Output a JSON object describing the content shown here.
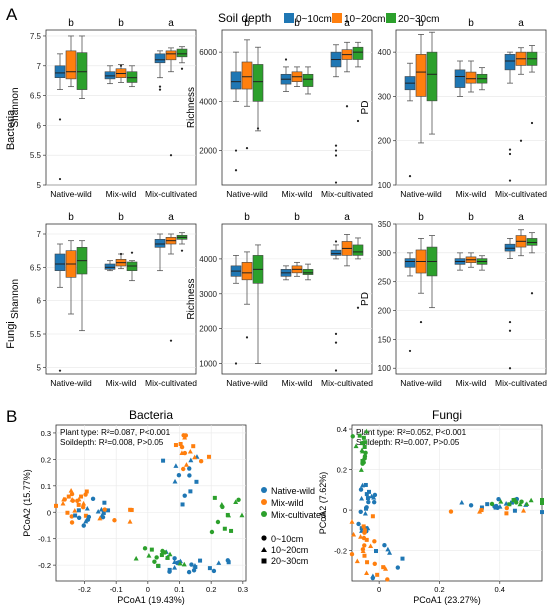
{
  "panel_labels": {
    "a": "A",
    "b": "B"
  },
  "legend": {
    "title": "Soil depth",
    "items": [
      {
        "label": "0~10cm",
        "color": "#1f77b4"
      },
      {
        "label": "10~20cm",
        "color": "#ff7f0e"
      },
      {
        "label": "20~30cm",
        "color": "#2ca02c"
      }
    ]
  },
  "row_labels": {
    "bacteria": "Bacteria",
    "fungi": "Fungi"
  },
  "groups": [
    "Native-wild",
    "Mix-wild",
    "Mix-cultivated"
  ],
  "colors": {
    "d1": "#1f77b4",
    "d2": "#ff7f0e",
    "d3": "#2ca02c",
    "native": "#1f77b4",
    "mixwild": "#ff7f0e",
    "mixcult": "#2ca02c"
  },
  "pcoa_titles": {
    "bacteria": "Bacteria",
    "fungi": "Fungi"
  },
  "pcoa_legend": {
    "groups": [
      "Native-wild",
      "Mix-wild",
      "Mix-cultivated"
    ],
    "depths": [
      "0~10cm",
      "10~20cm",
      "20~30cm"
    ]
  },
  "chart_data": [
    {
      "type": "box",
      "id": "bac_shannon",
      "ylabel": "Shannon",
      "ylim": [
        5.0,
        7.6
      ],
      "yticks": [
        5.0,
        5.5,
        6.0,
        6.5,
        7.0,
        7.5
      ],
      "letters": [
        "b",
        "b",
        "a"
      ],
      "boxes": [
        [
          [
            6.6,
            6.8,
            6.88,
            7.0,
            7.2
          ],
          [
            6.65,
            6.78,
            6.9,
            7.25,
            7.5
          ],
          [
            6.45,
            6.6,
            6.9,
            7.22,
            7.5
          ]
        ],
        [
          [
            6.7,
            6.78,
            6.83,
            6.9,
            7.0
          ],
          [
            6.72,
            6.8,
            6.87,
            6.95,
            7.02
          ],
          [
            6.65,
            6.72,
            6.8,
            6.9,
            7.0
          ]
        ],
        [
          [
            6.8,
            7.05,
            7.1,
            7.2,
            7.25
          ],
          [
            6.9,
            7.1,
            7.2,
            7.25,
            7.3
          ],
          [
            7.05,
            7.15,
            7.2,
            7.28,
            7.32
          ]
        ]
      ],
      "outliers": [
        [
          [
            5.1,
            6.1
          ],
          [],
          []
        ],
        [
          [],
          [
            7.0
          ],
          []
        ],
        [
          [
            6.6,
            6.65
          ],
          [
            5.5
          ],
          [
            6.95
          ]
        ]
      ]
    },
    {
      "type": "box",
      "id": "bac_richness",
      "ylabel": "Richness",
      "ylim": [
        600,
        6900
      ],
      "yticks": [
        2000,
        4000,
        6000
      ],
      "letters": [
        "b",
        "b",
        "a"
      ],
      "boxes": [
        [
          [
            4000,
            4500,
            4800,
            5200,
            6000
          ],
          [
            3800,
            4500,
            5000,
            5600,
            6500
          ],
          [
            2800,
            4000,
            4800,
            5500,
            6200
          ]
        ],
        [
          [
            4400,
            4700,
            4900,
            5100,
            5400
          ],
          [
            4600,
            4800,
            5000,
            5200,
            5400
          ],
          [
            4300,
            4600,
            4900,
            5100,
            5400
          ]
        ],
        [
          [
            5000,
            5400,
            5700,
            6000,
            6300
          ],
          [
            5200,
            5700,
            5900,
            6100,
            6400
          ],
          [
            5400,
            5700,
            6000,
            6200,
            6400
          ]
        ]
      ],
      "outliers": [
        [
          [
            1200,
            2000
          ],
          [
            2100
          ],
          [
            2900
          ]
        ],
        [
          [
            5700
          ],
          [],
          []
        ],
        [
          [
            2200,
            1800,
            2000,
            700
          ],
          [
            3800
          ],
          [
            3200
          ]
        ]
      ]
    },
    {
      "type": "box",
      "id": "bac_pd",
      "ylabel": "PD",
      "ylim": [
        100,
        450
      ],
      "yticks": [
        100,
        200,
        300,
        400
      ],
      "letters": [
        "b",
        "b",
        "a"
      ],
      "boxes": [
        [
          [
            290,
            315,
            330,
            345,
            375
          ],
          [
            195,
            300,
            355,
            395,
            440
          ],
          [
            215,
            290,
            350,
            400,
            445
          ]
        ],
        [
          [
            300,
            320,
            345,
            360,
            380
          ],
          [
            310,
            330,
            340,
            355,
            380
          ],
          [
            315,
            330,
            340,
            350,
            365
          ]
        ],
        [
          [
            330,
            360,
            380,
            395,
            400
          ],
          [
            350,
            370,
            385,
            400,
            410
          ],
          [
            355,
            370,
            385,
            400,
            415
          ]
        ]
      ],
      "outliers": [
        [
          [
            120
          ],
          [],
          []
        ],
        [
          [],
          [],
          []
        ],
        [
          [
            180,
            170,
            110
          ],
          [
            200
          ],
          [
            240
          ]
        ]
      ]
    },
    {
      "type": "box",
      "id": "fun_shannon",
      "ylabel": "Shannon",
      "ylim": [
        4.9,
        7.15
      ],
      "yticks": [
        5.0,
        5.5,
        6.0,
        6.5,
        7.0
      ],
      "letters": [
        "b",
        "b",
        "a"
      ],
      "boxes": [
        [
          [
            6.2,
            6.45,
            6.55,
            6.7,
            6.85
          ],
          [
            5.8,
            6.35,
            6.55,
            6.75,
            6.9
          ],
          [
            5.55,
            6.4,
            6.6,
            6.8,
            6.9
          ]
        ],
        [
          [
            6.45,
            6.47,
            6.5,
            6.55,
            6.6
          ],
          [
            6.48,
            6.52,
            6.57,
            6.62,
            6.7
          ],
          [
            6.3,
            6.45,
            6.52,
            6.58,
            6.6
          ]
        ],
        [
          [
            6.45,
            6.8,
            6.85,
            6.92,
            7.0
          ],
          [
            6.7,
            6.85,
            6.9,
            6.95,
            7.0
          ],
          [
            6.85,
            6.92,
            6.95,
            6.98,
            7.02
          ]
        ]
      ],
      "outliers": [
        [
          [
            4.95
          ],
          [],
          []
        ],
        [
          [],
          [
            6.7
          ],
          [
            6.72
          ]
        ],
        [
          [],
          [
            5.4
          ],
          [
            6.75
          ]
        ]
      ]
    },
    {
      "type": "box",
      "id": "fun_richness",
      "ylabel": "Richness",
      "ylim": [
        700,
        5000
      ],
      "yticks": [
        1000,
        2000,
        3000,
        4000
      ],
      "letters": [
        "b",
        "b",
        "a"
      ],
      "boxes": [
        [
          [
            3300,
            3500,
            3650,
            3800,
            4100
          ],
          [
            2700,
            3400,
            3600,
            3900,
            4200
          ],
          [
            1000,
            3300,
            3700,
            4100,
            4400
          ]
        ],
        [
          [
            3400,
            3500,
            3600,
            3700,
            3800
          ],
          [
            3500,
            3600,
            3700,
            3800,
            3900
          ],
          [
            3400,
            3550,
            3600,
            3700,
            3850
          ]
        ],
        [
          [
            4000,
            4100,
            4150,
            4250,
            4400
          ],
          [
            3800,
            4100,
            4300,
            4500,
            4700
          ],
          [
            4000,
            4100,
            4200,
            4400,
            4600
          ]
        ]
      ],
      "outliers": [
        [
          [
            1000
          ],
          [
            1750
          ],
          []
        ],
        [
          [],
          [],
          []
        ],
        [
          [
            4500,
            1850,
            1600,
            800
          ],
          [],
          [
            2600
          ]
        ]
      ]
    },
    {
      "type": "box",
      "id": "fun_pd",
      "ylabel": "PD",
      "ylim": [
        90,
        350
      ],
      "yticks": [
        100,
        150,
        200,
        250,
        300,
        350
      ],
      "letters": [
        "b",
        "b",
        "a"
      ],
      "boxes": [
        [
          [
            260,
            275,
            285,
            290,
            300
          ],
          [
            230,
            265,
            285,
            305,
            325
          ],
          [
            205,
            260,
            285,
            310,
            330
          ]
        ],
        [
          [
            270,
            280,
            285,
            290,
            300
          ],
          [
            275,
            283,
            288,
            293,
            300
          ],
          [
            270,
            280,
            285,
            290,
            295
          ]
        ],
        [
          [
            290,
            303,
            308,
            315,
            325
          ],
          [
            295,
            310,
            320,
            330,
            340
          ],
          [
            300,
            313,
            318,
            325,
            335
          ]
        ]
      ],
      "outliers": [
        [
          [
            130
          ],
          [
            180
          ],
          []
        ],
        [
          [],
          [],
          []
        ],
        [
          [
            180,
            165,
            100
          ],
          [],
          [
            230
          ]
        ]
      ]
    },
    {
      "type": "scatter",
      "id": "pcoa_bacteria",
      "title": "Bacteria",
      "xlabel": "PCoA1 (19.43%)",
      "ylabel": "PCoA2 (15.77%)",
      "xlim": [
        -0.29,
        0.31
      ],
      "ylim": [
        -0.26,
        0.33
      ],
      "xticks": [
        -0.2,
        -0.1,
        0.0,
        0.1,
        0.2,
        0.3
      ],
      "yticks": [
        -0.2,
        -0.1,
        0.0,
        0.1,
        0.2,
        0.3
      ],
      "stats": [
        {
          "label": "Plant type",
          "r2": "R²=0.087",
          "p": "P<0.001"
        },
        {
          "label": "Soildepth",
          "r2": "R²=0.008",
          "p": "P>0.05"
        }
      ],
      "clusters": [
        {
          "group": "mixwild",
          "cx": -0.23,
          "cy": 0.04,
          "sx": 0.03,
          "sy": 0.03,
          "n": 22
        },
        {
          "group": "native",
          "cx": -0.16,
          "cy": -0.01,
          "sx": 0.035,
          "sy": 0.03,
          "n": 16
        },
        {
          "group": "mixwild",
          "cx": -0.1,
          "cy": -0.02,
          "sx": 0.03,
          "sy": 0.02,
          "n": 6
        },
        {
          "group": "mixwild",
          "cx": 0.12,
          "cy": 0.27,
          "sx": 0.02,
          "sy": 0.02,
          "n": 7
        },
        {
          "group": "native",
          "cx": 0.11,
          "cy": 0.12,
          "sx": 0.03,
          "sy": 0.06,
          "n": 12
        },
        {
          "group": "mixwild",
          "cx": 0.14,
          "cy": 0.2,
          "sx": 0.03,
          "sy": 0.03,
          "n": 8
        },
        {
          "group": "native",
          "cx": 0.09,
          "cy": -0.2,
          "sx": 0.05,
          "sy": 0.02,
          "n": 18
        },
        {
          "group": "mixcult",
          "cx": 0.05,
          "cy": -0.18,
          "sx": 0.05,
          "sy": 0.02,
          "n": 14
        },
        {
          "group": "mixcult",
          "cx": 0.25,
          "cy": 0.0,
          "sx": 0.025,
          "sy": 0.05,
          "n": 12
        },
        {
          "group": "native",
          "cx": 0.24,
          "cy": -0.18,
          "sx": 0.02,
          "sy": 0.03,
          "n": 4
        }
      ]
    },
    {
      "type": "scatter",
      "id": "pcoa_fungi",
      "title": "Fungi",
      "xlabel": "PCoA1 (23.27%)",
      "ylabel": "PCoA2 (7.62%)",
      "xlim": [
        -0.09,
        0.54
      ],
      "ylim": [
        -0.35,
        0.42
      ],
      "xticks": [
        0.0,
        0.2,
        0.4
      ],
      "yticks": [
        -0.2,
        0.0,
        0.2,
        0.4
      ],
      "stats": [
        {
          "label": "Plant type",
          "r2": "R²=0.052",
          "p": "P<0.001"
        },
        {
          "label": "Soildepth",
          "r2": "R²=0.007",
          "p": "P>0.05"
        }
      ],
      "clusters": [
        {
          "group": "mixcult",
          "cx": -0.06,
          "cy": 0.3,
          "sx": 0.012,
          "sy": 0.06,
          "n": 18
        },
        {
          "group": "native",
          "cx": -0.04,
          "cy": 0.02,
          "sx": 0.02,
          "sy": 0.1,
          "n": 22
        },
        {
          "group": "mixwild",
          "cx": -0.05,
          "cy": -0.15,
          "sx": 0.02,
          "sy": 0.08,
          "n": 18
        },
        {
          "group": "mixwild",
          "cx": -0.0,
          "cy": -0.28,
          "sx": 0.03,
          "sy": 0.03,
          "n": 6
        },
        {
          "group": "native",
          "cx": 0.01,
          "cy": -0.22,
          "sx": 0.03,
          "sy": 0.05,
          "n": 8
        },
        {
          "group": "native",
          "cx": 0.4,
          "cy": 0.02,
          "sx": 0.07,
          "sy": 0.015,
          "n": 16
        },
        {
          "group": "mixcult",
          "cx": 0.45,
          "cy": 0.04,
          "sx": 0.05,
          "sy": 0.012,
          "n": 12
        },
        {
          "group": "mixwild",
          "cx": 0.34,
          "cy": 0.0,
          "sx": 0.05,
          "sy": 0.01,
          "n": 6
        }
      ]
    }
  ]
}
